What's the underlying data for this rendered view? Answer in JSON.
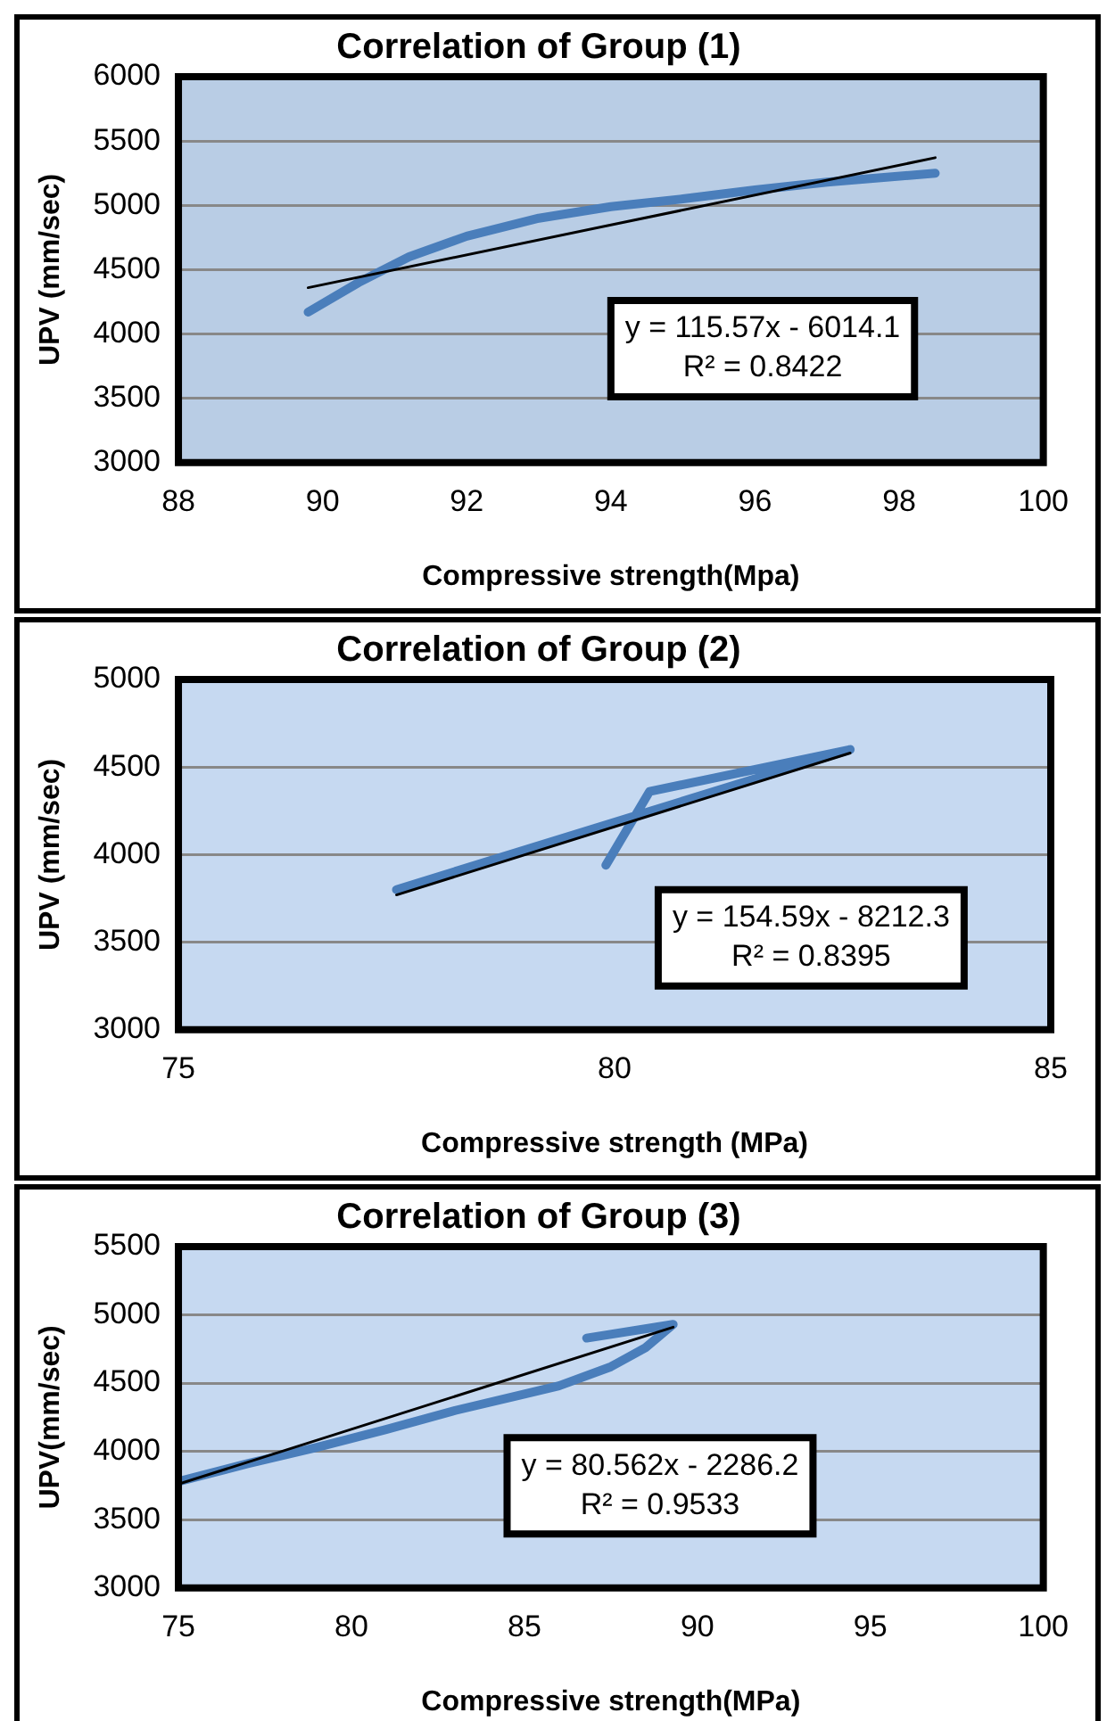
{
  "chart_data": [
    {
      "type": "line",
      "title": "Correlation of Group (1)",
      "xlabel": "Compressive strength(Mpa)",
      "ylabel": "UPV (mm/sec)",
      "series": [
        {
          "color": "#4a7ebb",
          "x": [
            89.8,
            90.5,
            91.2,
            92,
            93,
            94,
            95,
            96,
            97,
            98.5
          ],
          "values": [
            4170,
            4400,
            4600,
            4760,
            4900,
            4990,
            5050,
            5120,
            5180,
            5250
          ]
        },
        {
          "color": "#000000",
          "x": [
            89.8,
            98.5
          ],
          "values": [
            4360,
            5370
          ]
        }
      ],
      "xlim": [
        88,
        100
      ],
      "xticks": [
        88,
        90,
        92,
        94,
        96,
        98,
        100
      ],
      "ylim": [
        3000,
        6000
      ],
      "yticks": [
        3000,
        3500,
        4000,
        4500,
        5000,
        5500,
        6000
      ],
      "grid": "y",
      "annotations": [
        "y = 115.57x - 6014.1",
        "R² = 0.8422"
      ]
    },
    {
      "type": "line",
      "title": "Correlation of Group (2)",
      "xlabel": "Compressive strength (MPa)",
      "ylabel": "UPV (mm/sec)",
      "series": [
        {
          "color": "#4a7ebb",
          "x": [
            77.5,
            82.7,
            80.4,
            79.9
          ],
          "values": [
            3800,
            4600,
            4360,
            3940
          ]
        },
        {
          "color": "#000000",
          "x": [
            77.5,
            82.7
          ],
          "values": [
            3770,
            4580
          ]
        }
      ],
      "xlim": [
        75,
        85
      ],
      "xticks": [
        75,
        80,
        85
      ],
      "ylim": [
        3000,
        5000
      ],
      "yticks": [
        3000,
        3500,
        4000,
        4500,
        5000
      ],
      "grid": "y",
      "annotations": [
        "y = 154.59x - 8212.3",
        "R² = 0.8395"
      ]
    },
    {
      "type": "line",
      "title": "Correlation of Group (3)",
      "xlabel": "Compressive strength(MPa)",
      "ylabel": "UPV(mm/sec)",
      "series": [
        {
          "color": "#4a7ebb",
          "x": [
            75,
            77,
            79,
            81,
            83,
            85,
            86,
            87.5,
            88.5,
            89.3,
            86.8
          ],
          "values": [
            3780,
            3910,
            4030,
            4160,
            4300,
            4420,
            4480,
            4620,
            4760,
            4930,
            4830
          ]
        },
        {
          "color": "#000000",
          "x": [
            75,
            89.3
          ],
          "values": [
            3760,
            4910
          ]
        }
      ],
      "xlim": [
        75,
        100
      ],
      "xticks": [
        75,
        80,
        85,
        90,
        95,
        100
      ],
      "ylim": [
        3000,
        5500
      ],
      "yticks": [
        3000,
        3500,
        4000,
        4500,
        5000,
        5500
      ],
      "grid": "y",
      "annotations": [
        "y = 80.562x - 2286.2",
        "R² = 0.9533"
      ]
    }
  ]
}
